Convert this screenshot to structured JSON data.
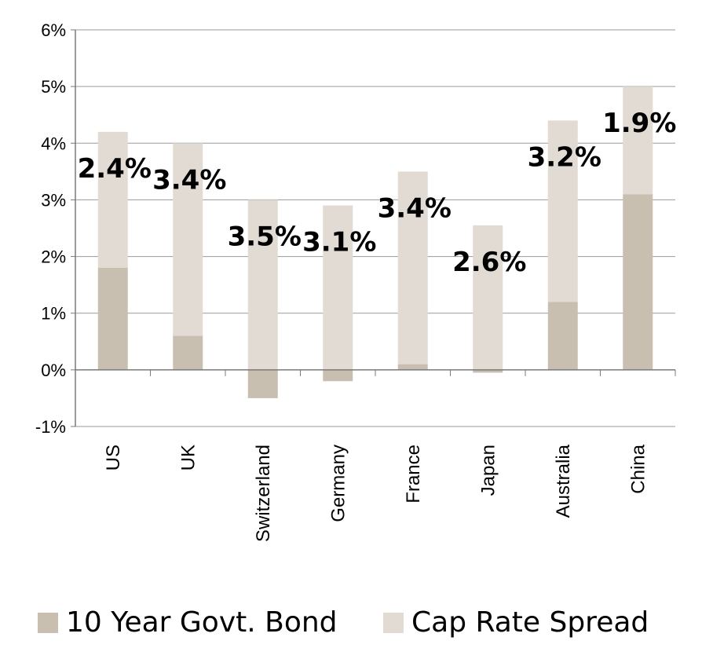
{
  "chart_data": {
    "type": "bar",
    "stacked": true,
    "categories": [
      "US",
      "UK",
      "Switzerland",
      "Germany",
      "France",
      "Japan",
      "Australia",
      "China"
    ],
    "series": [
      {
        "name": "10 Year Govt. Bond",
        "color": "#c8bfb0",
        "values": [
          1.8,
          0.6,
          -0.5,
          -0.2,
          0.1,
          -0.05,
          1.2,
          3.1
        ]
      },
      {
        "name": "Cap Rate Spread",
        "color": "#e2dbd4",
        "values": [
          2.4,
          3.4,
          3.5,
          3.1,
          3.4,
          2.6,
          3.2,
          1.9
        ]
      }
    ],
    "data_labels": [
      "2.4%",
      "3.4%",
      "3.5%",
      "3.1%",
      "3.4%",
      "2.6%",
      "3.2%",
      "1.9%"
    ],
    "y_ticks": [
      "-1%",
      "0%",
      "1%",
      "2%",
      "3%",
      "4%",
      "5%",
      "6%"
    ],
    "ylim": [
      -1,
      6
    ],
    "grid": true,
    "legend_position": "bottom",
    "title": "",
    "xlabel": "",
    "ylabel": ""
  }
}
